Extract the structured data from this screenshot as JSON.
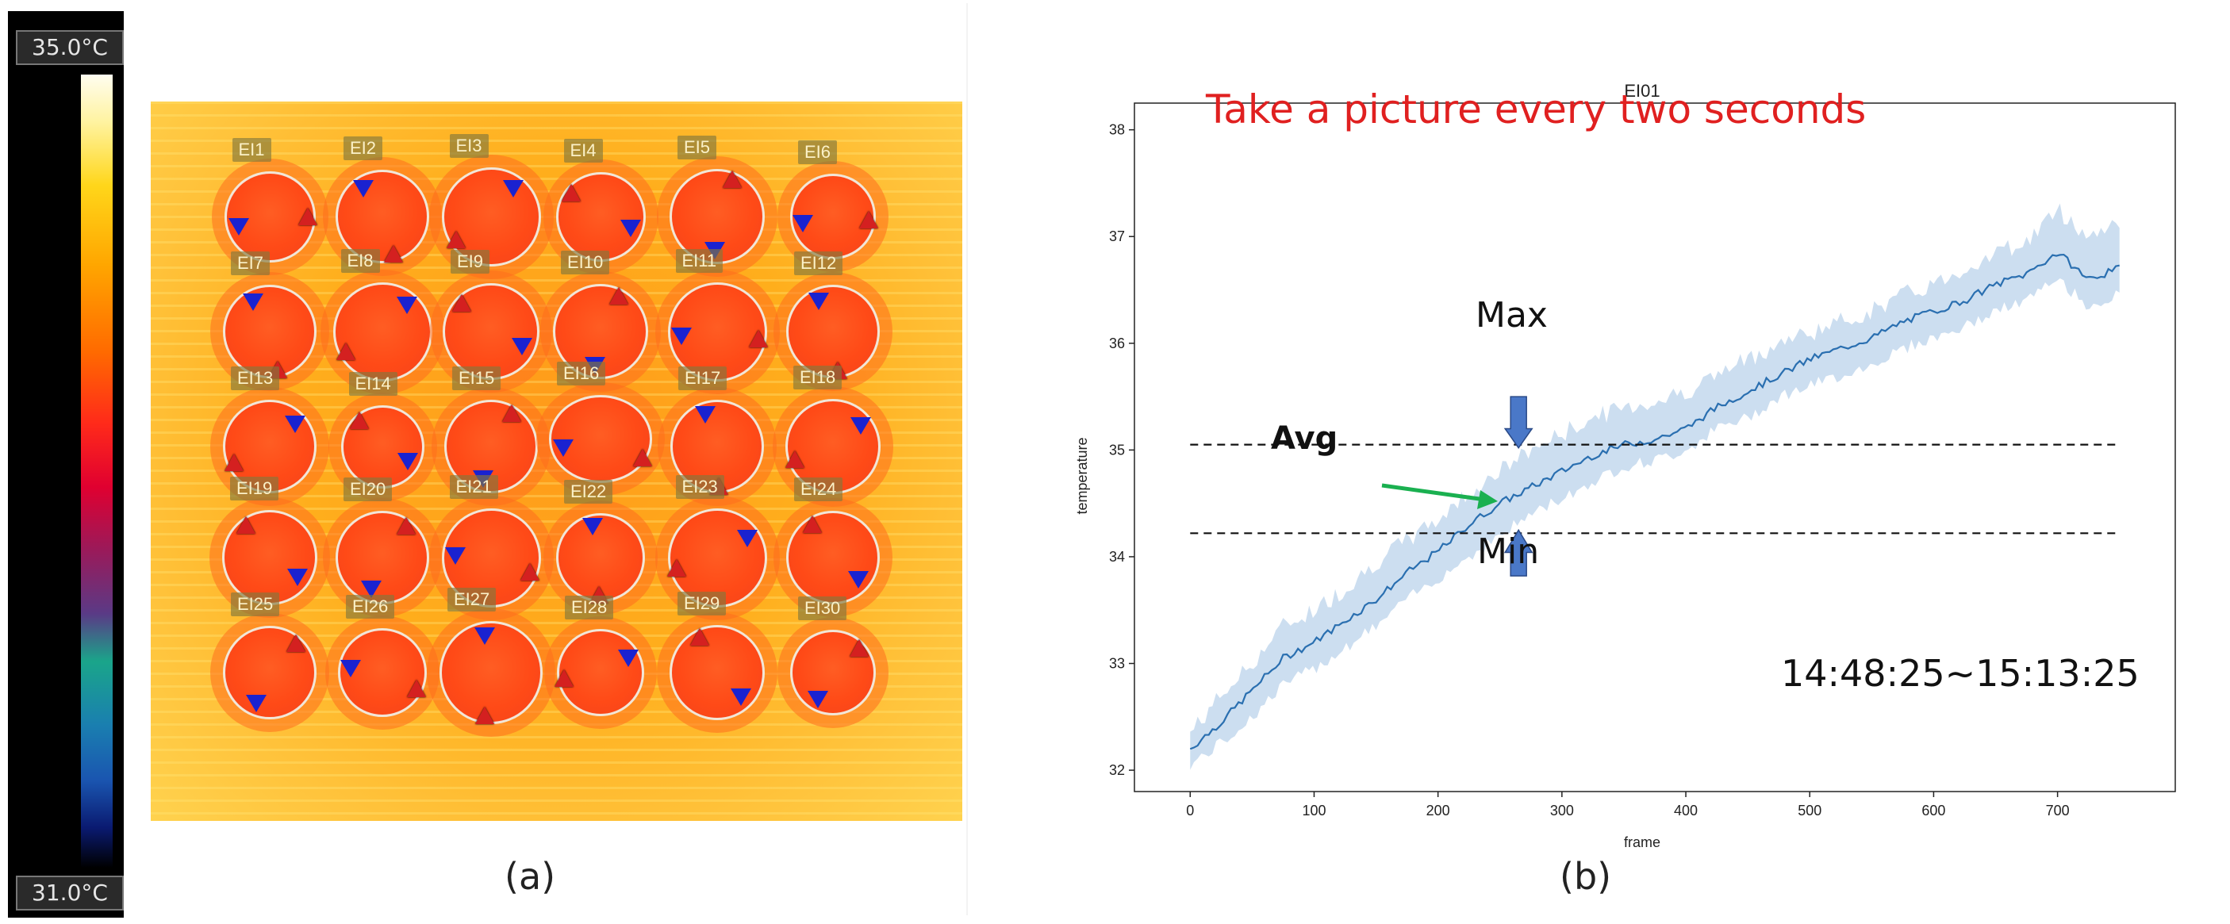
{
  "panel_a": {
    "caption": "(a)",
    "color_scale": {
      "max_label": "35.0°C",
      "min_label": "31.0°C"
    },
    "wells": [
      [
        "EI1",
        "EI2",
        "EI3",
        "EI4",
        "EI5",
        "EI6"
      ],
      [
        "EI7",
        "EI8",
        "EI9",
        "EI10",
        "EI11",
        "EI12"
      ],
      [
        "EI13",
        "EI14",
        "EI15",
        "EI16",
        "EI17",
        "EI18"
      ],
      [
        "EI19",
        "EI20",
        "EI21",
        "EI22",
        "EI23",
        "EI24"
      ],
      [
        "EI25",
        "EI26",
        "EI27",
        "EI28",
        "EI29",
        "EI30"
      ]
    ]
  },
  "panel_b": {
    "caption": "(b)",
    "annotation_title": "Take a picture every two seconds",
    "time_range": "14:48:25~15:13:25",
    "max_label": "Max",
    "min_label": "Min",
    "avg_label": "Avg"
  },
  "chart_data": {
    "type": "line",
    "title": "EI01",
    "xlabel": "frame",
    "ylabel": "temperature",
    "xlim": [
      -45,
      795
    ],
    "ylim": [
      31.8,
      38.25
    ],
    "xticks": [
      0,
      100,
      200,
      300,
      400,
      500,
      600,
      700
    ],
    "yticks": [
      32,
      33,
      34,
      35,
      36,
      37,
      38
    ],
    "grid": false,
    "series": [
      {
        "name": "Avg",
        "x": [
          0,
          25,
          50,
          75,
          100,
          125,
          150,
          175,
          200,
          225,
          250,
          275,
          300,
          325,
          350,
          375,
          400,
          425,
          450,
          475,
          500,
          525,
          550,
          575,
          600,
          625,
          650,
          675,
          700,
          725,
          750
        ],
        "values": [
          32.2,
          32.45,
          32.75,
          33.05,
          33.2,
          33.4,
          33.6,
          33.85,
          34.05,
          34.3,
          34.5,
          34.65,
          34.8,
          34.95,
          35.05,
          35.1,
          35.2,
          35.4,
          35.55,
          35.7,
          35.85,
          35.95,
          36.05,
          36.2,
          36.3,
          36.4,
          36.55,
          36.65,
          36.85,
          36.6,
          36.7
        ],
        "band_lower": [
          32.05,
          32.25,
          32.5,
          32.8,
          32.95,
          33.15,
          33.35,
          33.6,
          33.8,
          34.0,
          34.2,
          34.4,
          34.55,
          34.7,
          34.85,
          34.9,
          35.0,
          35.2,
          35.3,
          35.5,
          35.6,
          35.7,
          35.8,
          35.95,
          36.05,
          36.15,
          36.3,
          36.4,
          36.6,
          36.35,
          36.45
        ],
        "band_upper": [
          32.35,
          32.7,
          33.0,
          33.35,
          33.5,
          33.7,
          33.95,
          34.15,
          34.35,
          34.6,
          34.8,
          35.0,
          35.15,
          35.3,
          35.4,
          35.45,
          35.55,
          35.7,
          35.85,
          36.0,
          36.1,
          36.2,
          36.3,
          36.45,
          36.55,
          36.7,
          36.85,
          36.95,
          37.25,
          37.0,
          37.15
        ]
      }
    ],
    "reference_lines": [
      {
        "label": "Max",
        "y": 35.05,
        "x_range": [
          0,
          750
        ]
      },
      {
        "label": "Min",
        "y": 34.22,
        "x_range": [
          0,
          750
        ]
      }
    ]
  }
}
